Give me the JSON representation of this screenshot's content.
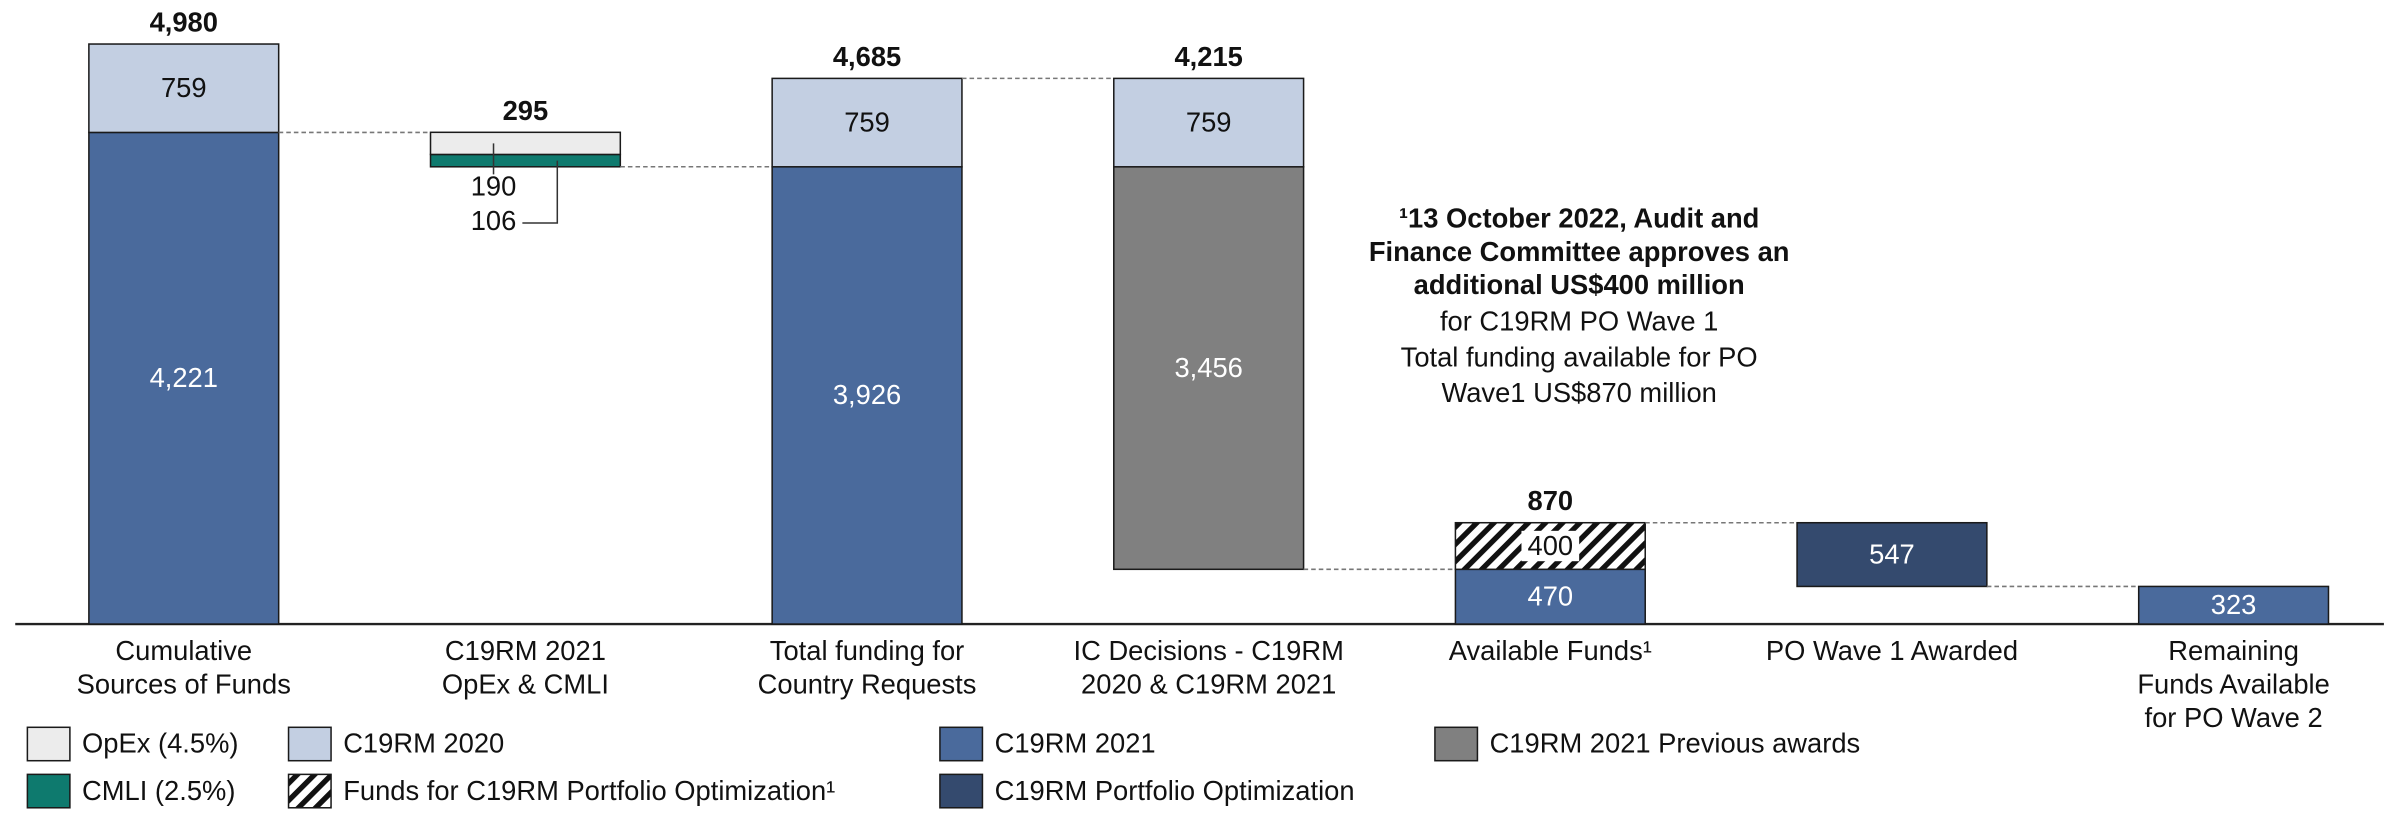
{
  "chart_data": {
    "type": "waterfall",
    "categories": [
      [
        "Cumulative",
        "Sources of Funds"
      ],
      [
        "C19RM 2021",
        "OpEx & CMLI"
      ],
      [
        "Total funding for",
        "Country Requests"
      ],
      [
        "IC Decisions - C19RM",
        "2020 & C19RM 2021"
      ],
      [
        "Available Funds¹"
      ],
      [
        "PO Wave 1 Awarded"
      ],
      [
        "Remaining",
        "Funds Available",
        "for PO Wave 2"
      ]
    ],
    "floating": [
      false,
      true,
      false,
      true,
      false,
      true,
      false
    ],
    "series": [
      {
        "name": "C19RM 2021",
        "color": "#4a6a9c",
        "values": [
          4221,
          null,
          3926,
          null,
          470,
          null,
          323
        ],
        "value_labels": [
          "4,221",
          null,
          "3,926",
          null,
          "470",
          null,
          "323"
        ]
      },
      {
        "name": "C19RM 2021 Previous awards",
        "color": "#808080",
        "values": [
          null,
          null,
          null,
          3456,
          null,
          null,
          null
        ],
        "value_labels": [
          null,
          null,
          null,
          "3,456",
          null,
          null,
          null
        ]
      },
      {
        "name": "CMLI (2.5%)",
        "color": "#0e7a6e",
        "values": [
          null,
          106,
          null,
          null,
          null,
          null,
          null
        ]
      },
      {
        "name": "C19RM Portfolio Optimization",
        "color": "#344a6e",
        "values": [
          null,
          null,
          null,
          null,
          null,
          547,
          null
        ]
      },
      {
        "name": "C19RM 2020",
        "color": "#c3cfe2",
        "values": [
          759,
          null,
          759,
          759,
          null,
          null,
          null
        ]
      },
      {
        "name": "OpEx (4.5%)",
        "color": "#ececec",
        "values": [
          null,
          190,
          null,
          null,
          null,
          null,
          null
        ]
      },
      {
        "name": "Funds for C19RM Portfolio Optimization¹",
        "color": "#000000",
        "pattern": "hatch",
        "values": [
          null,
          null,
          null,
          null,
          400,
          null,
          null
        ]
      }
    ],
    "totals": [
      4980,
      295,
      4685,
      4215,
      870,
      null,
      null
    ],
    "total_labels": [
      "4,980",
      "295",
      "4,685",
      "4,215",
      "870",
      null,
      null
    ],
    "annotation": {
      "bold_lines": [
        "¹13 October 2022, Audit and",
        "Finance Committee approves an",
        "additional US$400 million"
      ],
      "lines": [
        "for C19RM PO Wave 1",
        "Total funding available for PO",
        "Wave1 US$870 million"
      ]
    }
  }
}
